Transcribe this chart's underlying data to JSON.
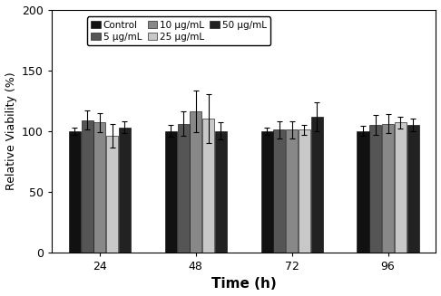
{
  "title": "",
  "xlabel": "Time (h)",
  "ylabel": "Relative Viability (%)",
  "time_points": [
    24,
    48,
    72,
    96
  ],
  "categories": [
    "Control",
    "5 μg/mL",
    "10 μg/mL",
    "25 μg/mL",
    "50 μg/mL"
  ],
  "bar_colors": [
    "#111111",
    "#555555",
    "#888888",
    "#c8c8c8",
    "#222222"
  ],
  "bar_values": [
    [
      100,
      109,
      107,
      96,
      103
    ],
    [
      100,
      106,
      116,
      110,
      100
    ],
    [
      100,
      101,
      101,
      101,
      112
    ],
    [
      100,
      105,
      106,
      107,
      105
    ]
  ],
  "bar_errors": [
    [
      3,
      8,
      8,
      10,
      5
    ],
    [
      5,
      10,
      17,
      20,
      7
    ],
    [
      3,
      7,
      7,
      4,
      12
    ],
    [
      4,
      8,
      8,
      5,
      5
    ]
  ],
  "ylim": [
    0,
    200
  ],
  "yticks": [
    0,
    50,
    100,
    150,
    200
  ],
  "bar_width": 0.13,
  "figsize": [
    4.86,
    3.27
  ],
  "dpi": 100,
  "background_color": "#ffffff",
  "edge_color": "#000000",
  "xlabel_fontsize": 11,
  "ylabel_fontsize": 9,
  "tick_fontsize": 9,
  "legend_fontsize": 7.5
}
